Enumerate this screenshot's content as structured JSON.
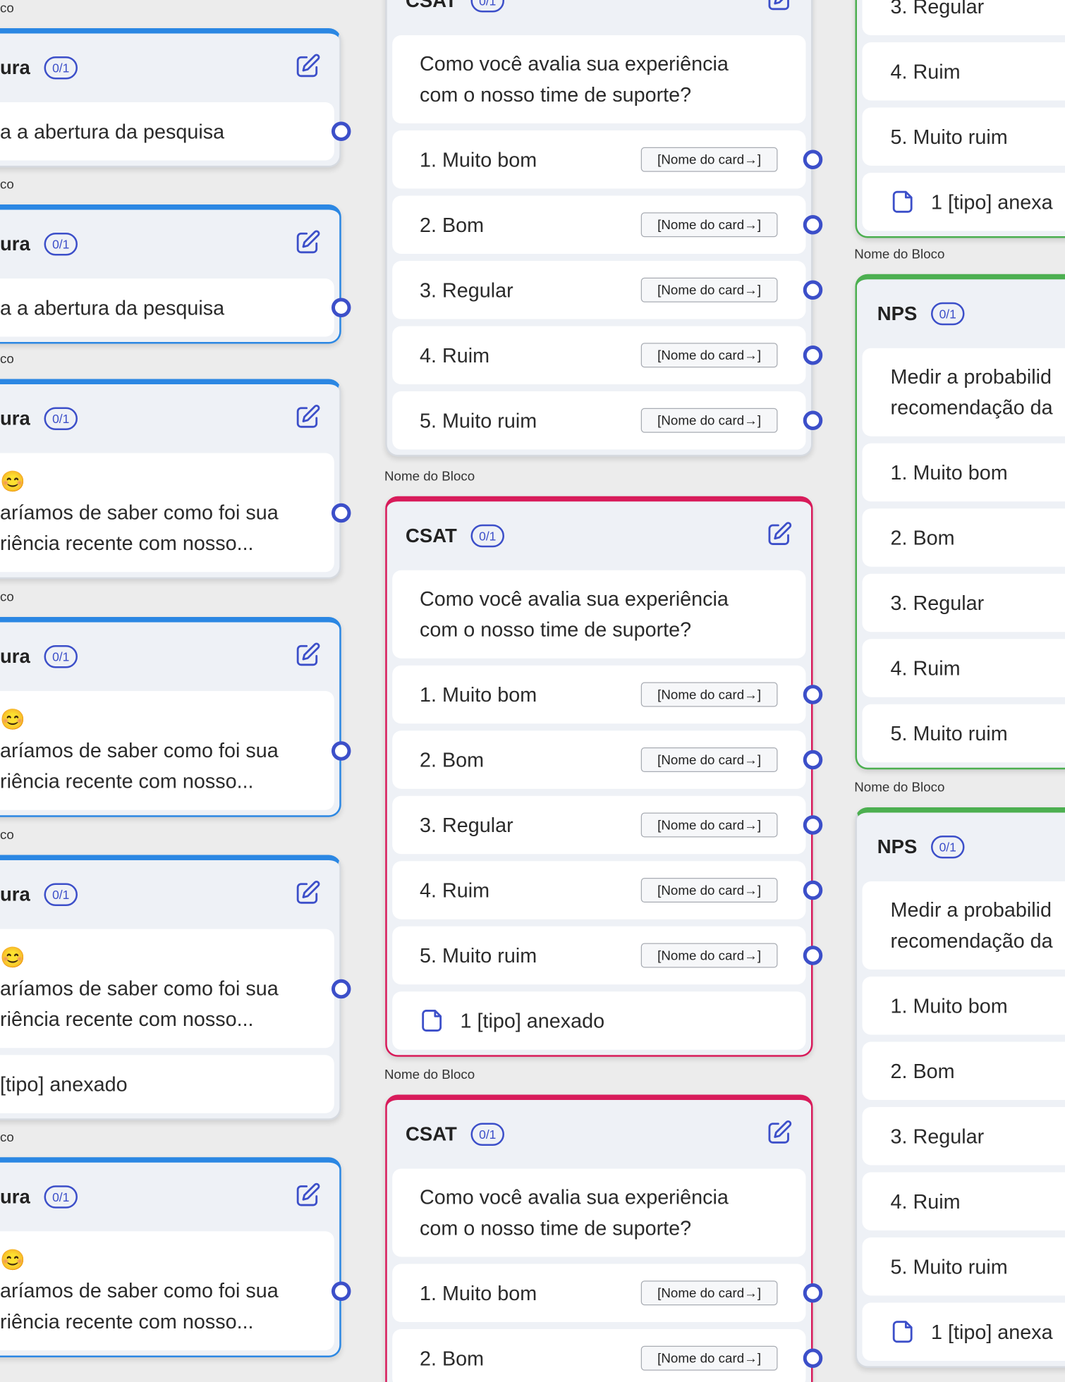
{
  "left_cards": [
    {
      "label": "co",
      "title": "ura",
      "badge": "0/1",
      "rows": [
        [
          "a a abertura da pesquisa"
        ]
      ]
    },
    {
      "label": "co",
      "title": "ura",
      "badge": "0/1",
      "rows": [
        [
          "a a abertura da pesquisa"
        ]
      ]
    },
    {
      "label": "co",
      "title": "ura",
      "badge": "0/1",
      "rows": [
        [
          "😊",
          "aríamos de saber como foi sua",
          "riência recente com nosso..."
        ]
      ]
    },
    {
      "label": "co",
      "title": "ura",
      "badge": "0/1",
      "rows": [
        [
          "😊",
          "aríamos de saber como foi sua",
          "riência recente com nosso..."
        ]
      ]
    },
    {
      "label": "co",
      "title": "ura",
      "badge": "0/1",
      "rows": [
        [
          "😊",
          "aríamos de saber como foi sua",
          "riência recente com nosso..."
        ],
        [
          "[tipo] anexado"
        ]
      ]
    },
    {
      "label": "co",
      "title": "ura",
      "badge": "0/1",
      "rows": [
        [
          "😊",
          "aríamos de saber como foi sua",
          "riência recente com nosso..."
        ]
      ]
    }
  ],
  "middle_cards": [
    {
      "title": "CSAT",
      "badge": "0/1",
      "question": [
        "Como você avalia sua experiência",
        "com o nosso time de suporte?"
      ],
      "options": [
        {
          "text": "1. Muito bom",
          "tag": "[Nome do card→]"
        },
        {
          "text": "2. Bom",
          "tag": "[Nome do card→]"
        },
        {
          "text": "3. Regular",
          "tag": "[Nome do card→]"
        },
        {
          "text": "4. Ruim",
          "tag": "[Nome do card→]"
        },
        {
          "text": "5. Muito ruim",
          "tag": "[Nome do card→]"
        }
      ]
    },
    {
      "label": "Nome do Bloco",
      "title": "CSAT",
      "badge": "0/1",
      "question": [
        "Como você avalia sua experiência",
        "com o nosso time de suporte?"
      ],
      "options": [
        {
          "text": "1. Muito bom",
          "tag": "[Nome do card→]"
        },
        {
          "text": "2. Bom",
          "tag": "[Nome do card→]"
        },
        {
          "text": "3. Regular",
          "tag": "[Nome do card→]"
        },
        {
          "text": "4. Ruim",
          "tag": "[Nome do card→]"
        },
        {
          "text": "5. Muito ruim",
          "tag": "[Nome do card→]"
        }
      ],
      "attachment": "1 [tipo] anexado"
    },
    {
      "label": "Nome do Bloco",
      "title": "CSAT",
      "badge": "0/1",
      "question": [
        "Como você avalia sua experiência",
        "com o nosso time de suporte?"
      ],
      "options": [
        {
          "text": "1. Muito bom",
          "tag": "[Nome do card→]"
        },
        {
          "text": "2. Bom",
          "tag": "[Nome do card→]"
        }
      ]
    }
  ],
  "right_cards": [
    {
      "options": [
        "3. Regular",
        "4. Ruim",
        "5. Muito ruim"
      ],
      "attachment": "1 [tipo] anexa"
    },
    {
      "label": "Nome do Bloco",
      "title": "NPS",
      "badge": "0/1",
      "question": [
        "Medir a probabilid",
        "recomendação da"
      ],
      "options": [
        "1. Muito bom",
        "2. Bom",
        "3. Regular",
        "4. Ruim",
        "5. Muito ruim"
      ]
    },
    {
      "label": "Nome do Bloco",
      "title": "NPS",
      "badge": "0/1",
      "question": [
        "Medir a probabilid",
        "recomendação da"
      ],
      "options": [
        "1. Muito bom",
        "2. Bom",
        "3. Regular",
        "4. Ruim",
        "5. Muito ruim"
      ],
      "attachment": "1 [tipo] anexa"
    }
  ]
}
